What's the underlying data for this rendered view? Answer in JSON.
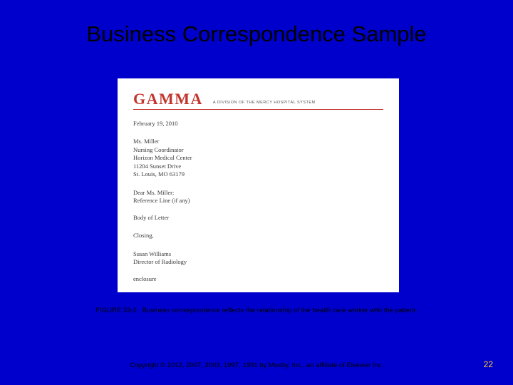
{
  "slide": {
    "title": "Business Correspondence Sample",
    "background_color": "#0000cc",
    "title_color": "#000000",
    "title_fontsize": 31
  },
  "letter": {
    "logo_text": "GAMMA",
    "logo_color": "#c4342d",
    "logo_subtitle": "A DIVISION OF THE MERCY HOSPITAL SYSTEM",
    "rule_color": "#c4342d",
    "date": "February 19, 2010",
    "address": {
      "name": "Ms. Miller",
      "title": "Nursing Coordinator",
      "org": "Horizon Medical Center",
      "street": "11204 Sunset Drive",
      "city": "St. Louis, MO 63179"
    },
    "salutation": "Dear Ms. Miller:",
    "reference": "Reference Line (if any)",
    "body": "Body of Letter",
    "closing": "Closing,",
    "signer_name": "Susan Williams",
    "signer_title": "Director of Radiology",
    "enclosure": "enclosure",
    "body_fontsize": 8.5,
    "body_color": "#3a3a3a",
    "paper_background": "#ffffff"
  },
  "caption": {
    "label": "FIGURE 33-2",
    "text": "Business correspondence reflects the relationship of the health care worker with the patient.",
    "fontsize": 9.5,
    "color": "#000000"
  },
  "footer": {
    "copyright": "Copyright © 2012, 2007, 2003, 1997, 1991 by Mosby, Inc., an affiliate of Elsevier Inc.",
    "page_number": "22",
    "pagenum_color": "#ffcc33",
    "copyright_fontsize": 9.5
  }
}
